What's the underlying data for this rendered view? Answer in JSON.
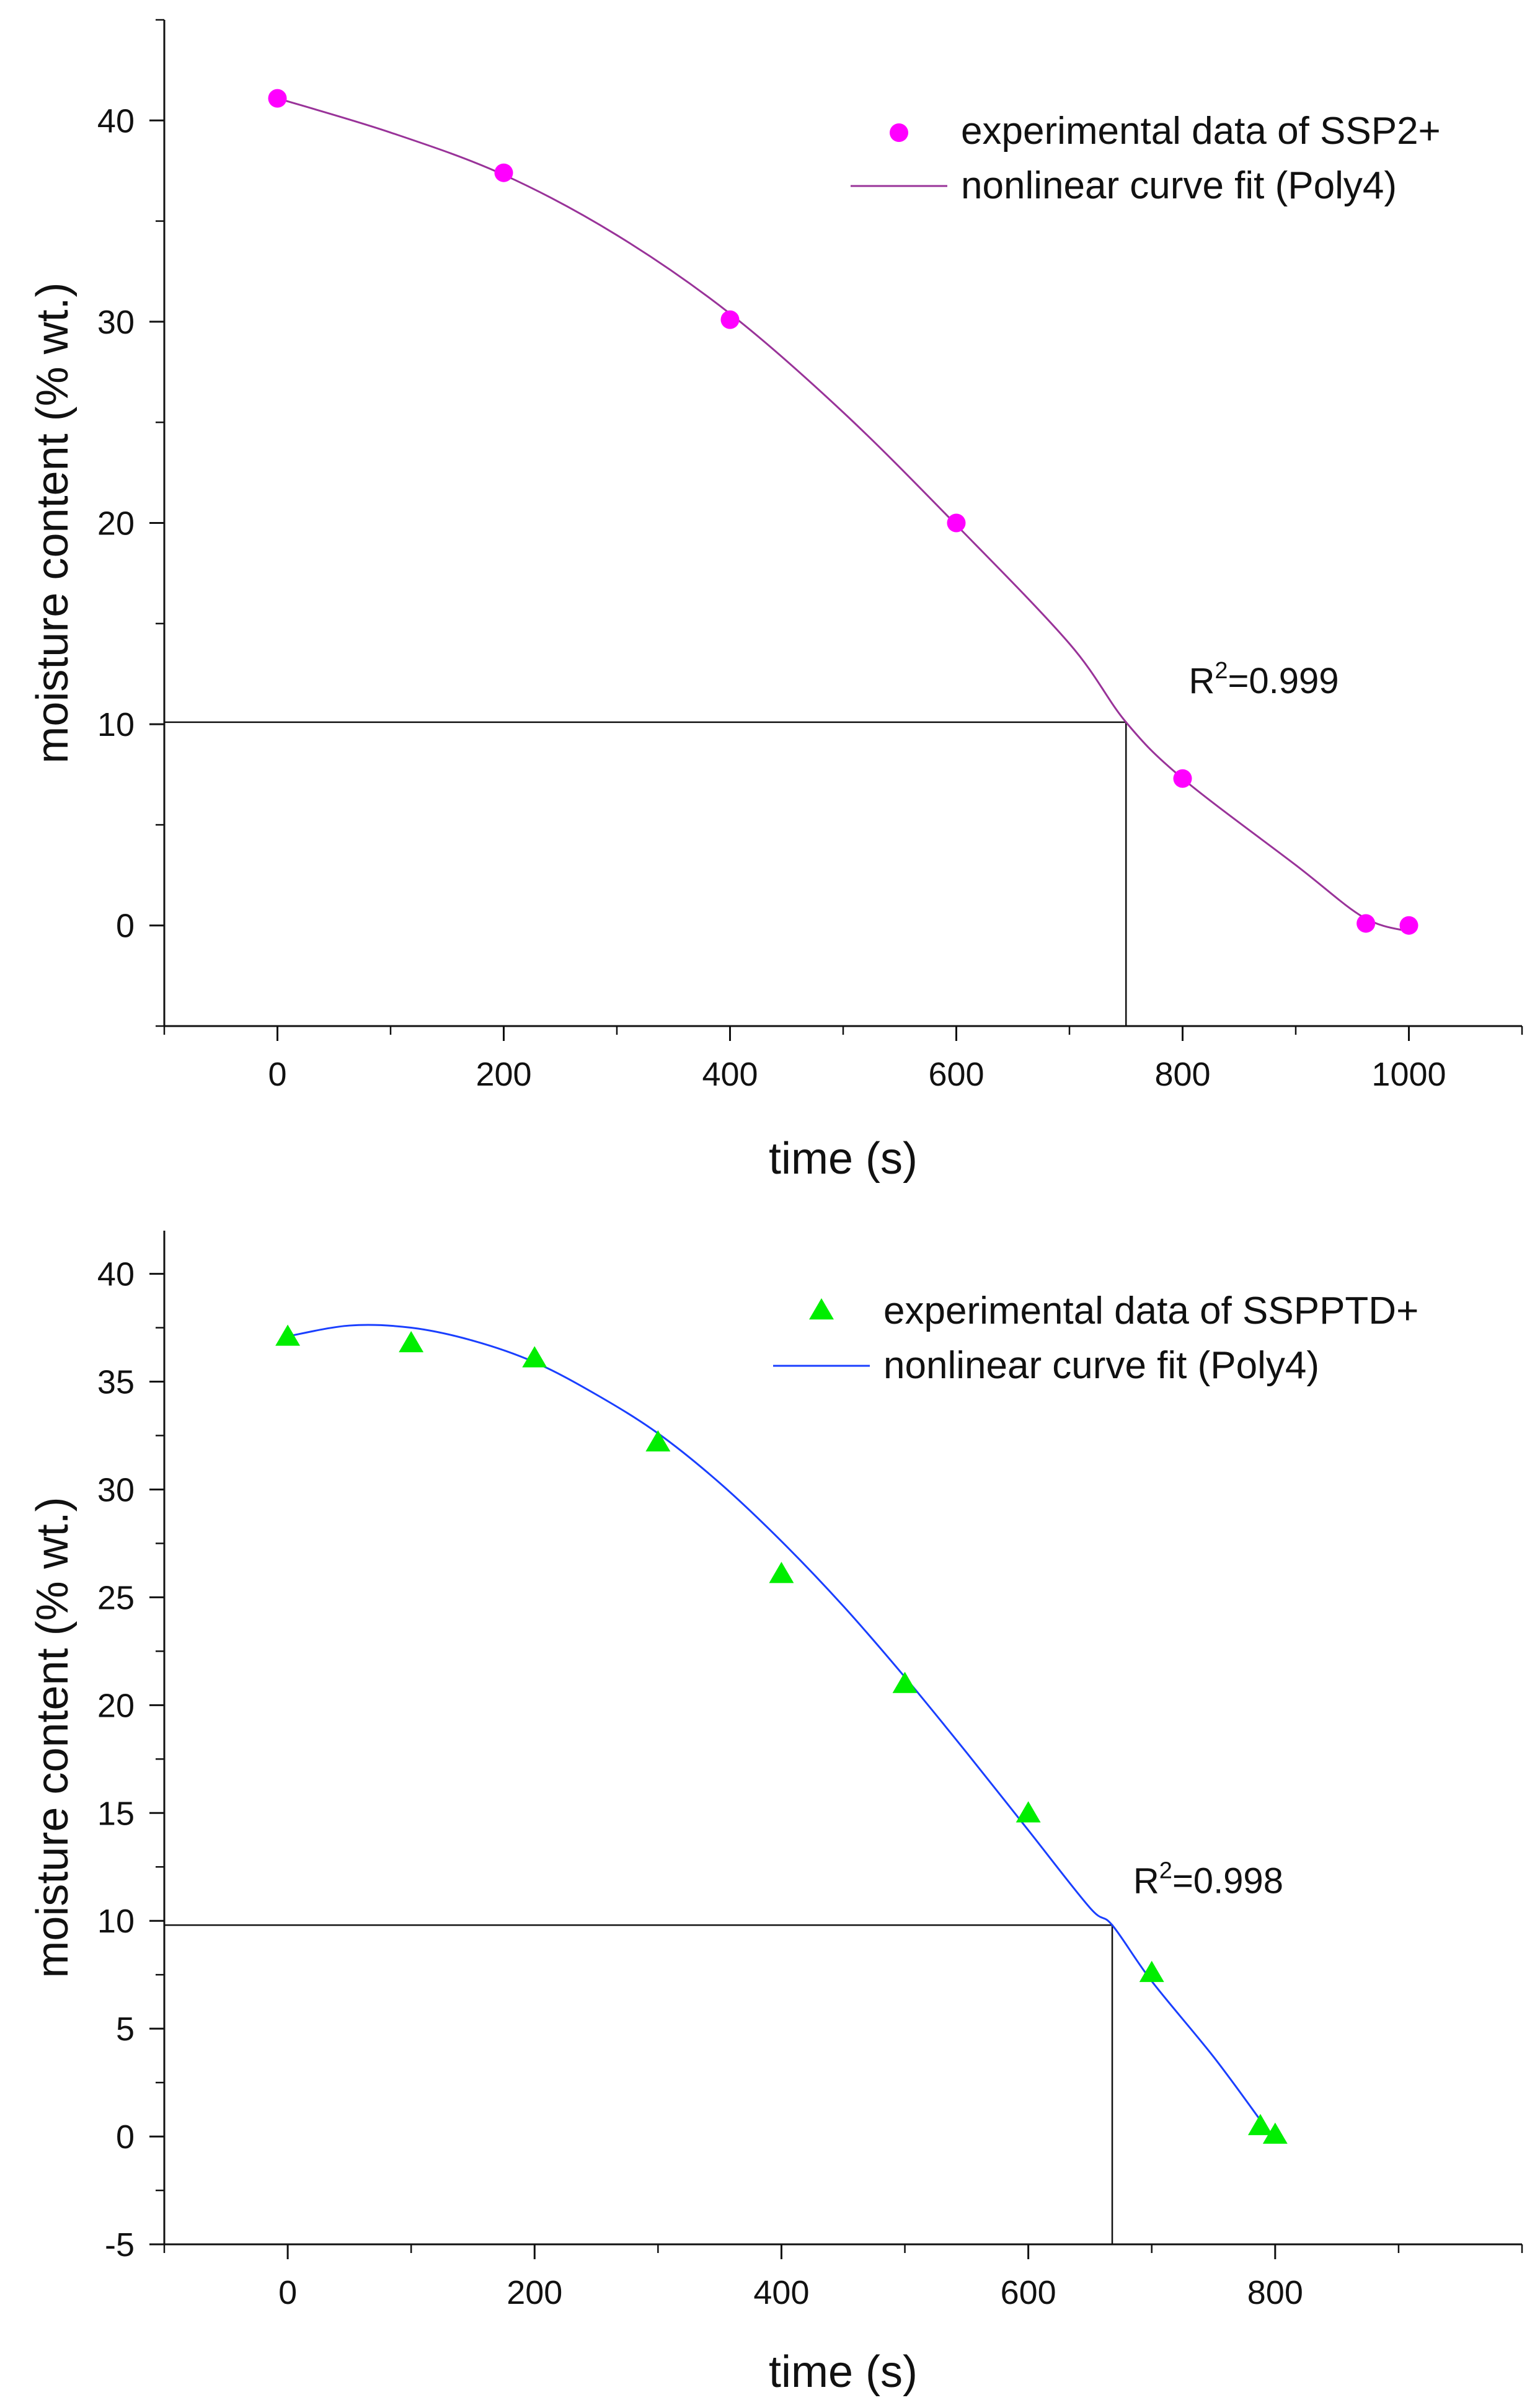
{
  "chart_data": [
    {
      "type": "scatter",
      "xlabel": "time (s)",
      "ylabel": "moisture content (% wt.)",
      "xlim": [
        -100,
        1100
      ],
      "ylim": [
        -5,
        45
      ],
      "xticks": [
        0,
        200,
        400,
        600,
        800,
        1000
      ],
      "xtick_labels": [
        "0",
        "200",
        "400",
        "600",
        "800",
        "1000"
      ],
      "yticks": [
        0,
        10,
        20,
        30,
        40
      ],
      "ytick_labels": [
        "0",
        "10",
        "20",
        "30",
        "40"
      ],
      "x_minor_step": 100,
      "y_minor_step": 5,
      "grid": false,
      "legend_position": "top-right",
      "series": [
        {
          "name": "experimental data of SSP2+",
          "kind": "scatter",
          "marker": "circle",
          "color": "#ff00ff",
          "x": [
            0,
            200,
            400,
            600,
            800,
            962,
            1000
          ],
          "y": [
            41.1,
            37.4,
            30.1,
            20.0,
            7.3,
            0.1,
            0.0
          ]
        },
        {
          "name": "nonlinear curve fit (Poly4)",
          "kind": "line",
          "color": "#993399",
          "x": [
            0,
            100,
            200,
            300,
            400,
            500,
            600,
            700,
            750,
            800,
            900,
            960,
            1000
          ],
          "y": [
            41.1,
            39.4,
            37.3,
            34.3,
            30.4,
            25.5,
            19.9,
            14.0,
            10.1,
            7.3,
            3.0,
            0.4,
            -0.3
          ]
        }
      ],
      "guide_lines": {
        "y": 10.1,
        "x": 750
      },
      "annotation": {
        "base": "R",
        "sup": "2",
        "rest": "=0.999",
        "x": 800,
        "y": 10.8
      }
    },
    {
      "type": "scatter",
      "xlabel": "time (s)",
      "ylabel": "moisture content (% wt.)",
      "xlim": [
        -100,
        1000
      ],
      "ylim": [
        -5,
        42
      ],
      "xticks": [
        0,
        200,
        400,
        600,
        800
      ],
      "xtick_labels": [
        "0",
        "200",
        "400",
        "600",
        "800"
      ],
      "yticks": [
        -5,
        0,
        5,
        10,
        15,
        20,
        25,
        30,
        35,
        40
      ],
      "ytick_labels": [
        "-5",
        "0",
        "5",
        "10",
        "15",
        "20",
        "25",
        "30",
        "35",
        "40"
      ],
      "x_minor_step": 100,
      "y_minor_step": 2.5,
      "grid": false,
      "legend_position": "top-right",
      "series": [
        {
          "name": "experimental data of SSPPTD+",
          "kind": "scatter",
          "marker": "triangle",
          "color": "#00ee00",
          "x": [
            0,
            100,
            200,
            300,
            400,
            500,
            600,
            700,
            788,
            800
          ],
          "y": [
            37.1,
            36.8,
            36.1,
            32.2,
            26.1,
            21.0,
            15.0,
            7.6,
            0.5,
            0.1
          ]
        },
        {
          "name": "nonlinear curve fit (Poly4)",
          "kind": "line",
          "color": "#1a3fff",
          "x": [
            0,
            50,
            100,
            150,
            200,
            250,
            300,
            350,
            400,
            450,
            500,
            550,
            600,
            650,
            668,
            700,
            750,
            790
          ],
          "y": [
            37.1,
            37.6,
            37.5,
            36.9,
            35.9,
            34.4,
            32.6,
            30.3,
            27.6,
            24.6,
            21.3,
            17.8,
            14.2,
            10.6,
            9.8,
            7.2,
            3.7,
            0.6
          ]
        }
      ],
      "guide_lines": {
        "y": 9.8,
        "x": 668
      },
      "annotation": {
        "base": "R",
        "sup": "2",
        "rest": "=0.998",
        "x": 680,
        "y": 10.6
      }
    }
  ]
}
